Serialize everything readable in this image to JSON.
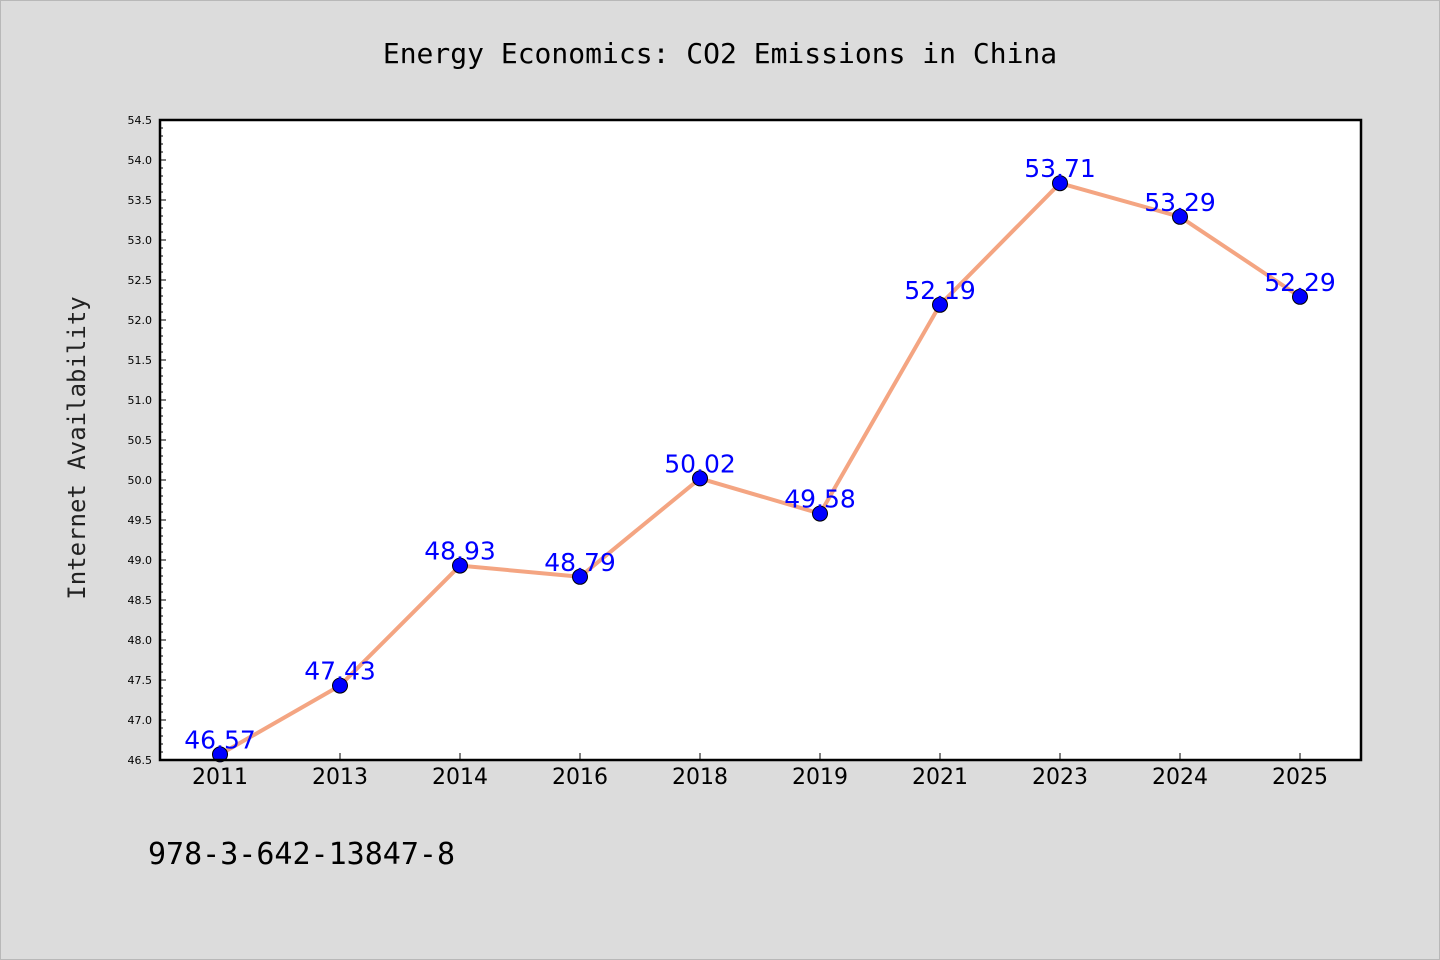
{
  "chart_data": {
    "type": "line",
    "title": "Energy Economics: CO2 Emissions in China",
    "xlabel": "",
    "ylabel": "Internet Availability",
    "categories": [
      "2011",
      "2013",
      "2014",
      "2016",
      "2018",
      "2019",
      "2021",
      "2023",
      "2024",
      "2025"
    ],
    "series": [
      {
        "values": [
          46.57,
          47.43,
          48.93,
          48.79,
          50.02,
          49.58,
          52.19,
          53.71,
          53.29,
          52.29
        ],
        "labels": [
          "46.57",
          "47.43",
          "48.93",
          "48.79",
          "50.02",
          "49.58",
          "52.19",
          "53.71",
          "53.29",
          "52.29"
        ],
        "line_color": "#f4a582",
        "marker_color": "#0000ff"
      }
    ],
    "ylim": [
      46.5,
      54.5
    ],
    "yticks": [
      "46.5",
      "47.0",
      "47.5",
      "48.0",
      "48.5",
      "49.0",
      "49.5",
      "50.0",
      "50.5",
      "51.0",
      "51.5",
      "52.0",
      "52.5",
      "53.0",
      "53.5",
      "54.0",
      "54.5"
    ],
    "grid": false,
    "legend": "none"
  },
  "footer_text": "978-3-642-13847-8",
  "colors": {
    "background": "#dcdcdc",
    "plot_background": "#ffffff",
    "data_label": "#0000ff"
  }
}
